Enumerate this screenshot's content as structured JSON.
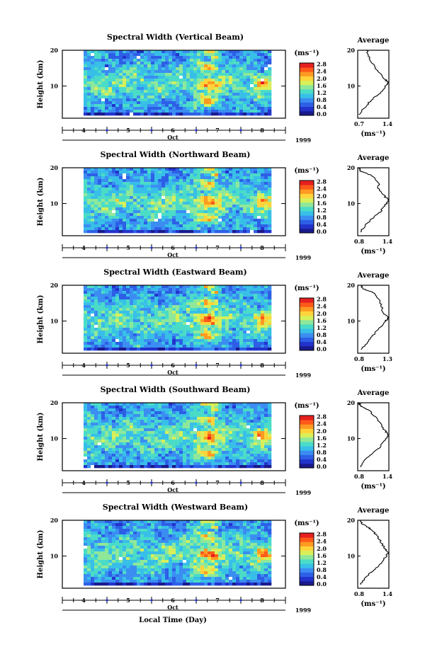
{
  "figure": {
    "xlabel": "Local Time (Day)",
    "month": "Oct",
    "year": "1999",
    "day_ticks": [
      "4",
      "5",
      "6",
      "7",
      "8"
    ],
    "height_ticks": [
      "20",
      "10"
    ],
    "ylabel": "Height (km)",
    "colorbar_unit": "(ms⁻¹)",
    "average_unit": "(ms⁻¹)",
    "average_title": "Average",
    "colorscale": [
      "#1a1a8c",
      "#2233cc",
      "#2d5fe6",
      "#3b8df2",
      "#38bfe8",
      "#4bdcc8",
      "#8fe89a",
      "#d8ef5a",
      "#ffd43a",
      "#ff9a22",
      "#ff5a1a",
      "#e62020"
    ]
  },
  "chart_data": [
    {
      "type": "heatmap",
      "title": "Spectral Width (Vertical Beam)",
      "xlabel": "Local Time (Day)",
      "ylabel": "Height (km)",
      "x_range_days": [
        4.0,
        8.3
      ],
      "y_range_km": [
        2,
        20
      ],
      "colorbar": {
        "unit": "(ms⁻¹)",
        "ticks": [
          "0.0",
          "0.4",
          "0.8",
          "1.2",
          "1.6",
          "2.0",
          "2.4",
          "2.8"
        ]
      },
      "average_profile": {
        "title": "Average",
        "xticks": [
          "0.7",
          "1.4"
        ],
        "xlim": [
          0.7,
          1.4
        ],
        "height_km": [
          2,
          4,
          6,
          8,
          10,
          11,
          12,
          14,
          16,
          18,
          20
        ],
        "width_ms": [
          0.72,
          0.85,
          1.0,
          1.2,
          1.32,
          1.38,
          1.3,
          1.15,
          1.05,
          0.95,
          0.9
        ]
      }
    },
    {
      "type": "heatmap",
      "title": "Spectral Width (Northward Beam)",
      "xlabel": "Local Time (Day)",
      "ylabel": "Height (km)",
      "x_range_days": [
        4.0,
        8.3
      ],
      "y_range_km": [
        2,
        20
      ],
      "colorbar": {
        "unit": "(ms⁻¹)",
        "ticks": [
          "0.0",
          "0.4",
          "0.8",
          "1.2",
          "1.6",
          "2.0",
          "2.4",
          "2.8"
        ]
      },
      "average_profile": {
        "title": "Average",
        "xticks": [
          "0.8",
          "1.4"
        ],
        "xlim": [
          0.8,
          1.4
        ],
        "height_km": [
          2,
          4,
          6,
          8,
          10,
          11,
          12,
          14,
          16,
          18,
          19,
          20
        ],
        "width_ms": [
          0.85,
          0.95,
          1.1,
          1.25,
          1.35,
          1.4,
          1.32,
          1.2,
          1.2,
          1.05,
          0.85,
          0.83
        ]
      }
    },
    {
      "type": "heatmap",
      "title": "Spectral Width (Eastward Beam)",
      "xlabel": "Local Time (Day)",
      "ylabel": "Height (km)",
      "x_range_days": [
        4.0,
        8.3
      ],
      "y_range_km": [
        2,
        20
      ],
      "colorbar": {
        "unit": "(ms⁻¹)",
        "ticks": [
          "0.0",
          "0.4",
          "0.8",
          "1.2",
          "1.6",
          "2.0",
          "2.4",
          "2.8"
        ]
      },
      "average_profile": {
        "title": "Average",
        "xticks": [
          "0.8",
          "1.3"
        ],
        "xlim": [
          0.8,
          1.3
        ],
        "height_km": [
          2,
          4,
          6,
          8,
          10,
          11,
          12,
          14,
          16,
          18,
          19,
          20
        ],
        "width_ms": [
          0.85,
          0.95,
          1.05,
          1.15,
          1.25,
          1.3,
          1.22,
          1.18,
          1.15,
          1.05,
          0.88,
          0.85
        ]
      }
    },
    {
      "type": "heatmap",
      "title": "Spectral Width (Southward Beam)",
      "xlabel": "Local Time (Day)",
      "ylabel": "Height (km)",
      "x_range_days": [
        4.0,
        8.3
      ],
      "y_range_km": [
        2,
        20
      ],
      "colorbar": {
        "unit": "(ms⁻¹)",
        "ticks": [
          "0.0",
          "0.4",
          "0.8",
          "1.2",
          "1.6",
          "2.0",
          "2.4",
          "2.8"
        ]
      },
      "average_profile": {
        "title": "Average",
        "xticks": [
          "0.8",
          "1.4"
        ],
        "xlim": [
          0.8,
          1.4
        ],
        "height_km": [
          2,
          4,
          6,
          8,
          10,
          11,
          12,
          14,
          16,
          18,
          19,
          20
        ],
        "width_ms": [
          0.85,
          0.95,
          1.1,
          1.25,
          1.35,
          1.4,
          1.33,
          1.25,
          1.15,
          1.0,
          0.85,
          0.83
        ]
      }
    },
    {
      "type": "heatmap",
      "title": "Spectral Width (Westward Beam)",
      "xlabel": "Local Time (Day)",
      "ylabel": "Height (km)",
      "x_range_days": [
        4.0,
        8.3
      ],
      "y_range_km": [
        2,
        20
      ],
      "colorbar": {
        "unit": "(ms⁻¹)",
        "ticks": [
          "0.0",
          "0.4",
          "0.8",
          "1.2",
          "1.6",
          "2.0",
          "2.4",
          "2.8"
        ]
      },
      "average_profile": {
        "title": "Average",
        "xticks": [
          "0.8",
          "1.4"
        ],
        "xlim": [
          0.8,
          1.4
        ],
        "height_km": [
          2,
          4,
          6,
          8,
          10,
          11,
          12,
          14,
          16,
          17,
          18,
          19,
          20
        ],
        "width_ms": [
          0.85,
          0.95,
          1.1,
          1.25,
          1.35,
          1.4,
          1.32,
          1.25,
          1.15,
          1.1,
          1.0,
          0.88,
          0.85
        ]
      }
    }
  ]
}
